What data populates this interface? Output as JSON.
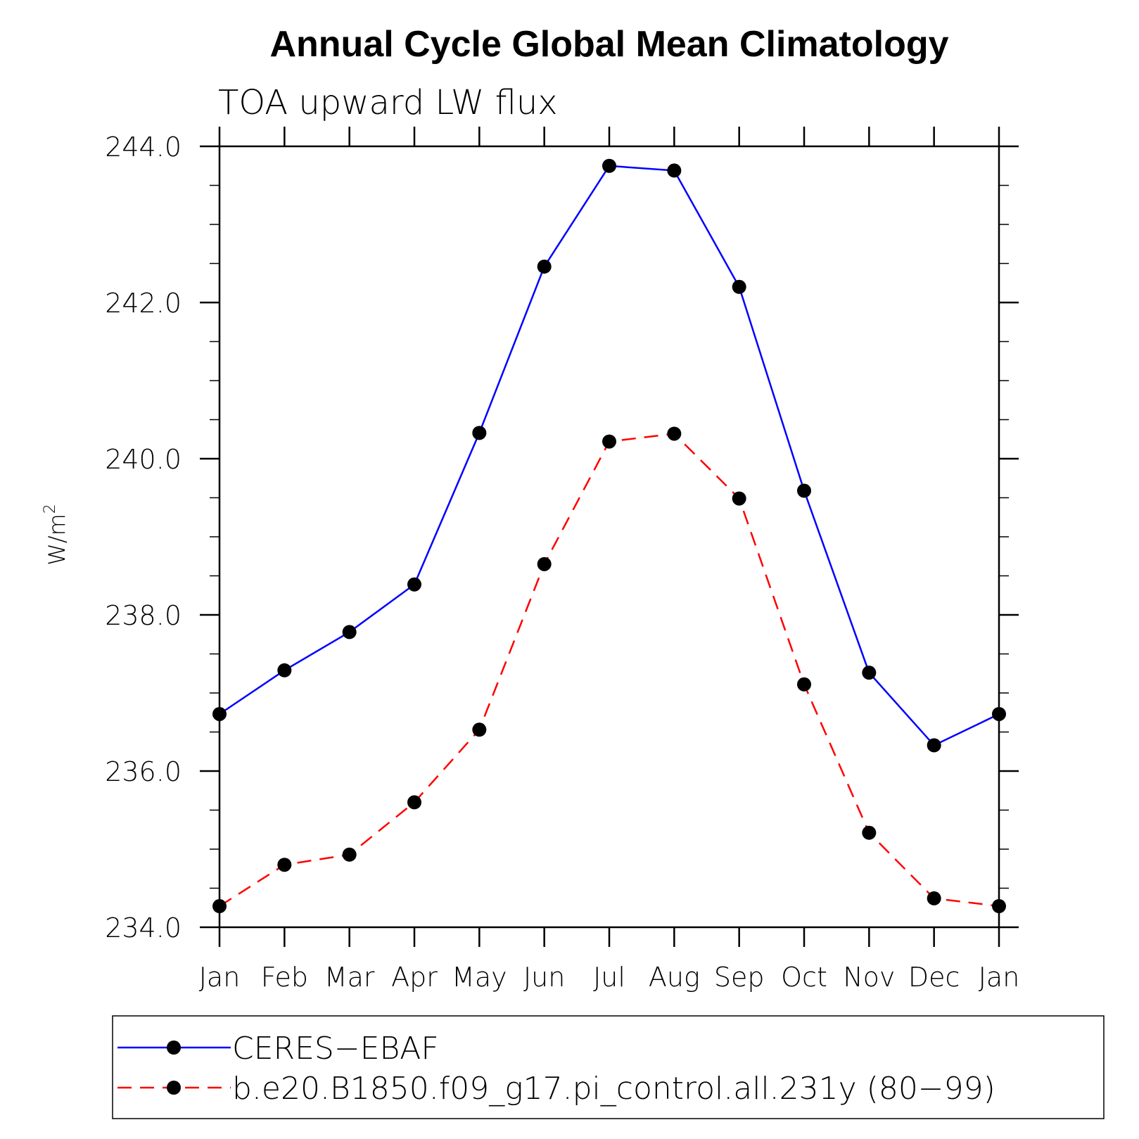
{
  "chart_data": {
    "type": "line",
    "title": "Annual Cycle Global Mean Climatology",
    "subtitle": "TOA upward LW flux",
    "xlabel": "",
    "ylabel": "W/m",
    "ylabel_superscript": "2",
    "categories": [
      "Jan",
      "Feb",
      "Mar",
      "Apr",
      "May",
      "Jun",
      "Jul",
      "Aug",
      "Sep",
      "Oct",
      "Nov",
      "Dec",
      "Jan"
    ],
    "ylim": [
      234.0,
      244.0
    ],
    "yticks": [
      "234.0",
      "236.0",
      "238.0",
      "240.0",
      "242.0",
      "244.0"
    ],
    "series": [
      {
        "name": "CERES-EBAF",
        "color": "#0000ff",
        "dash": "solid",
        "marker": "circle",
        "values": [
          236.73,
          237.29,
          237.78,
          238.39,
          240.33,
          242.46,
          243.75,
          243.69,
          242.2,
          239.59,
          237.26,
          236.33,
          236.73
        ]
      },
      {
        "name": "b.e20.B1850.f09_g17.pi_control.all.231y (80−99)",
        "color": "#ff0000",
        "dash": "dashed",
        "marker": "circle",
        "values": [
          234.27,
          234.8,
          234.93,
          235.6,
          236.53,
          238.65,
          240.22,
          240.32,
          239.49,
          237.11,
          235.21,
          234.37,
          234.27
        ]
      }
    ],
    "legend": {
      "position": "bottom",
      "entries": [
        "CERES−EBAF",
        "b.e20.B1850.f09_g17.pi_control.all.231y (80−99)"
      ]
    }
  }
}
